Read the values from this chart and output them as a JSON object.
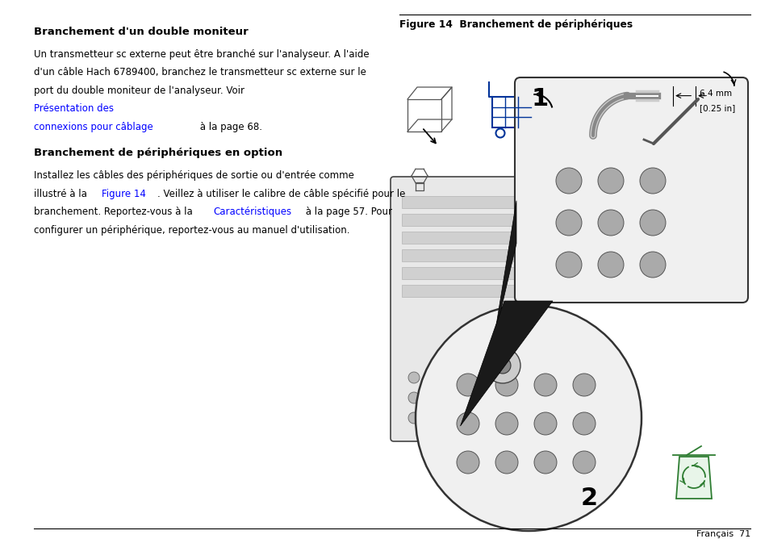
{
  "bg_color": "#ffffff",
  "page_width": 9.54,
  "page_height": 6.73,
  "heading1": "Branchement d'un double moniteur",
  "heading2": "Branchement de périphériques en option",
  "figure_title": "Figure 14  Branchement de périphériques",
  "footer_text": "Français  71",
  "link_color": "#0000ff",
  "text_color": "#000000",
  "separator_color": "#000000",
  "cart_color": "#003399"
}
